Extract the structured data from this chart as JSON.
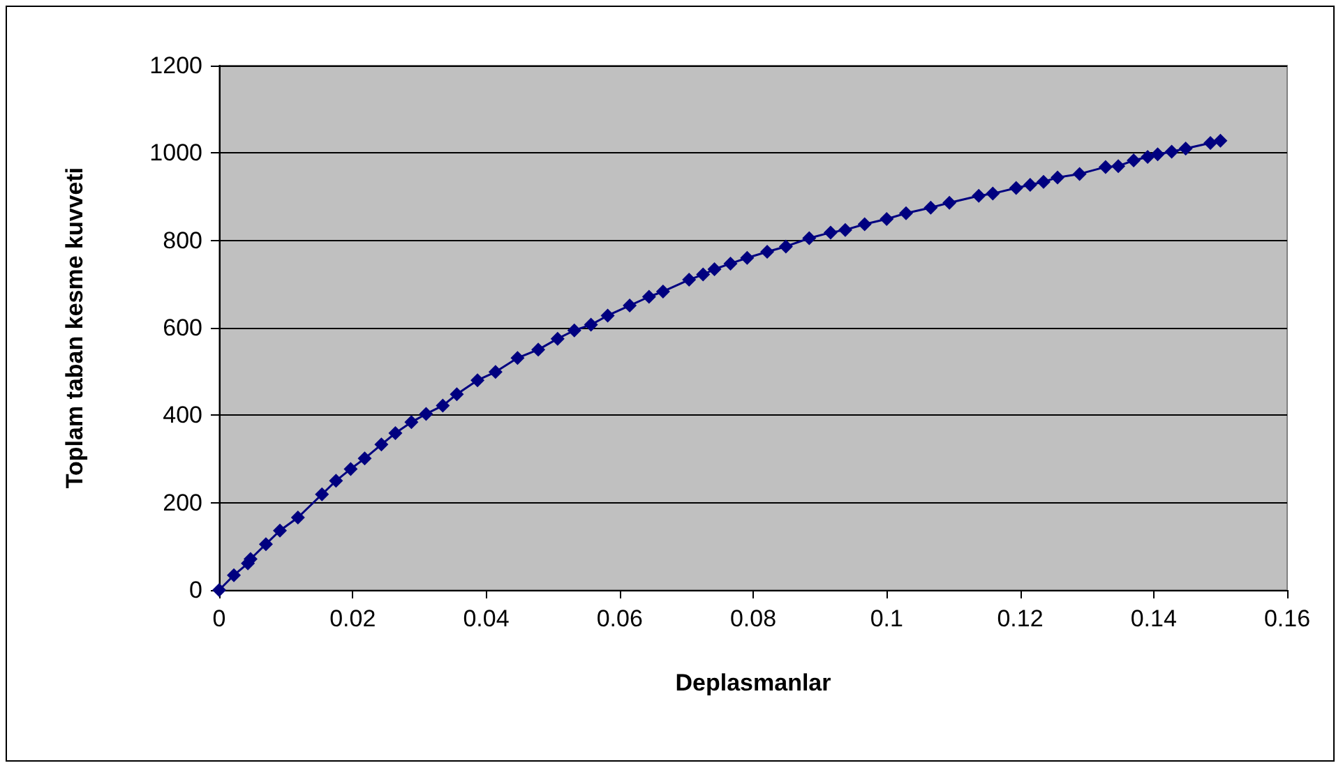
{
  "chart_data": {
    "type": "line",
    "xlabel": "Deplasmanlar",
    "ylabel": "Toplam taban kesme kuvveti",
    "x": [
      0,
      0.0022,
      0.0043,
      0.0047,
      0.007,
      0.0091,
      0.0118,
      0.0154,
      0.0175,
      0.0197,
      0.0218,
      0.0243,
      0.0264,
      0.0288,
      0.031,
      0.0335,
      0.0356,
      0.0387,
      0.0414,
      0.0447,
      0.0478,
      0.0507,
      0.0532,
      0.0557,
      0.0582,
      0.0615,
      0.0644,
      0.0665,
      0.0704,
      0.0725,
      0.0742,
      0.0766,
      0.0791,
      0.0821,
      0.0849,
      0.0884,
      0.0916,
      0.0938,
      0.0967,
      0.1,
      0.1029,
      0.1066,
      0.1094,
      0.1138,
      0.1159,
      0.1194,
      0.1215,
      0.1235,
      0.1256,
      0.1289,
      0.1328,
      0.1347,
      0.137,
      0.1391,
      0.1406,
      0.1427,
      0.1448,
      0.1485,
      0.15
    ],
    "series": [
      {
        "color": "#000080",
        "values": [
          0,
          34,
          61,
          71,
          105,
          136,
          166,
          219,
          250,
          277,
          301,
          333,
          359,
          384,
          403,
          422,
          448,
          480,
          499,
          531,
          550,
          575,
          594,
          607,
          628,
          651,
          671,
          683,
          710,
          722,
          734,
          747,
          760,
          774,
          786,
          805,
          818,
          824,
          837,
          849,
          862,
          875,
          886,
          902,
          907,
          920,
          927,
          934,
          944,
          952,
          968,
          970,
          983,
          991,
          997,
          1003,
          1010,
          1023,
          1028
        ]
      }
    ],
    "xlim": [
      0,
      0.16
    ],
    "xticks": [
      0,
      0.02,
      0.04,
      0.06,
      0.08,
      0.1,
      0.12,
      0.14,
      0.16
    ],
    "ylim": [
      0,
      1200
    ],
    "yticks": [
      0,
      200,
      400,
      600,
      800,
      1000,
      1200
    ],
    "grid": "y",
    "marker": "diamond",
    "line_style": "solid"
  }
}
